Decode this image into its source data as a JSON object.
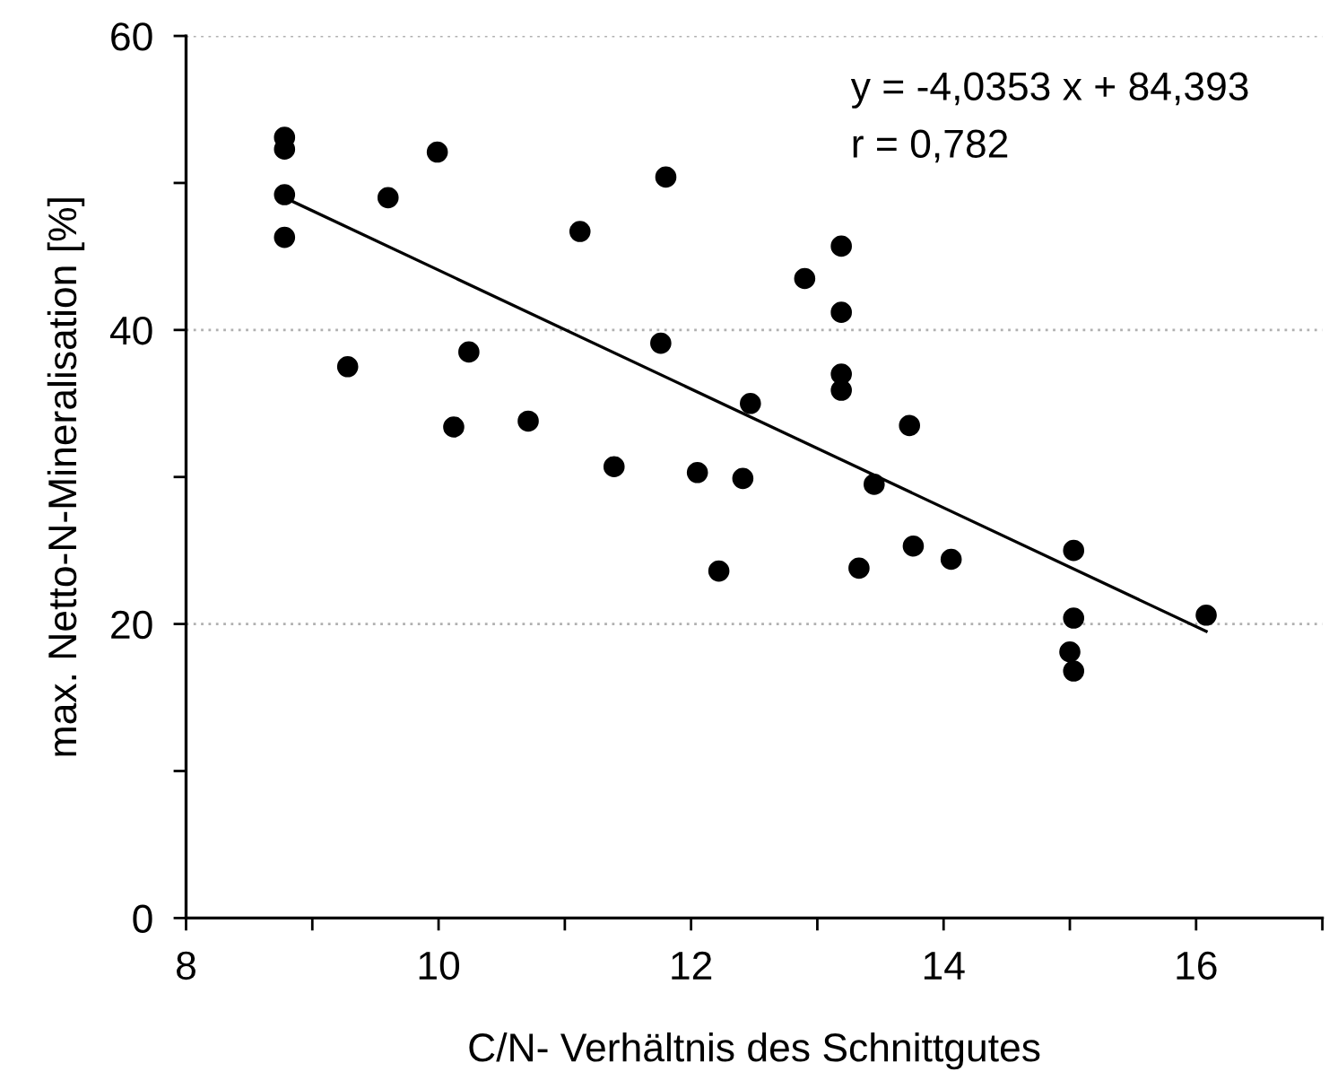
{
  "chart_data": {
    "type": "scatter",
    "xlabel": "C/N- Verhältnis des Schnittgutes",
    "ylabel": "max. Netto-N-Mineralisation [%]",
    "annotations": [
      "y = -4,0353 x + 84,393",
      "r = 0,782"
    ],
    "xlim": [
      8,
      17
    ],
    "xticks": [
      8,
      {
        "value": 9,
        "label": null
      },
      10,
      {
        "value": 11,
        "label": null
      },
      12,
      {
        "value": 13,
        "label": null
      },
      14,
      {
        "value": 15,
        "label": null
      },
      16,
      {
        "value": 17,
        "label": null
      }
    ],
    "ylim": [
      0,
      60
    ],
    "yticks": [
      0,
      {
        "value": 10,
        "label": null
      },
      20,
      {
        "value": 30,
        "label": null
      },
      40,
      {
        "value": 50,
        "label": null
      },
      60
    ],
    "grid": "y",
    "marker": "circle",
    "series": [
      {
        "color": "#000000",
        "x": [
          8.78,
          8.78,
          8.78,
          8.78,
          9.99,
          9.6,
          9.28,
          10.24,
          10.12,
          10.71,
          11.12,
          11.8,
          11.76,
          11.39,
          12.05,
          12.41,
          12.22,
          12.47,
          13.19,
          12.9,
          13.19,
          13.19,
          13.19,
          13.73,
          13.45,
          13.33,
          13.76,
          14.06,
          15.03,
          15.03,
          15.0,
          15.03,
          16.08
        ],
        "values": [
          53.1,
          52.3,
          49.2,
          46.3,
          52.1,
          49.0,
          37.5,
          38.5,
          33.4,
          33.8,
          46.7,
          50.4,
          39.1,
          30.7,
          30.3,
          29.9,
          23.6,
          35.0,
          45.7,
          43.5,
          41.2,
          37.0,
          35.9,
          33.5,
          29.5,
          23.8,
          25.3,
          24.4,
          25.0,
          20.4,
          18.1,
          16.8,
          20.6
        ]
      },
      {
        "type": "line",
        "color": "#000000",
        "marker": "none",
        "line_style": "solid",
        "x": [
          8.78,
          16.08
        ],
        "values": [
          49.0,
          19.5
        ]
      }
    ]
  }
}
